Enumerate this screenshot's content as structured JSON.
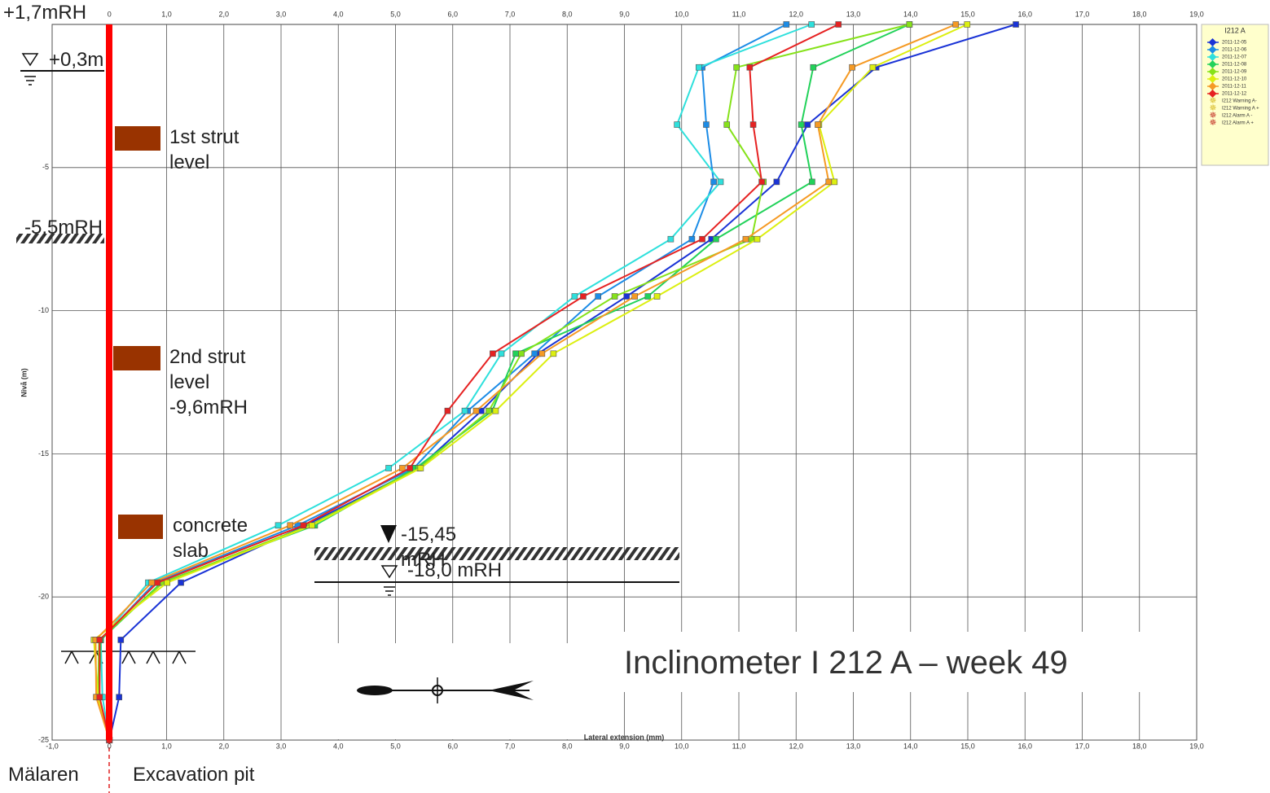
{
  "chart_data": {
    "type": "line",
    "xlabel": "Lateral extension (mm)",
    "ylabel": "Nivå (m)",
    "xlim": [
      -1,
      19
    ],
    "ylim": [
      -25,
      0
    ],
    "xticks": [
      {
        "value": -1,
        "label": "-1,0"
      },
      0,
      {
        "value": 1,
        "label": "1,0"
      },
      {
        "value": 2,
        "label": "2,0"
      },
      {
        "value": 3,
        "label": "3,0"
      },
      {
        "value": 4,
        "label": "4,0"
      },
      {
        "value": 5,
        "label": "5,0"
      },
      {
        "value": 6,
        "label": "6,0"
      },
      {
        "value": 7,
        "label": "7,0"
      },
      {
        "value": 8,
        "label": "8,0"
      },
      {
        "value": 9,
        "label": "9,0"
      },
      {
        "value": 10,
        "label": "10,0"
      },
      {
        "value": 11,
        "label": "11,0"
      },
      {
        "value": 12,
        "label": "12,0"
      },
      {
        "value": 13,
        "label": "13,0"
      },
      {
        "value": 14,
        "label": "14,0"
      },
      {
        "value": 15,
        "label": "15,0"
      },
      {
        "value": 16,
        "label": "16,0"
      },
      {
        "value": 17,
        "label": "17,0"
      },
      {
        "value": 18,
        "label": "18,0"
      },
      {
        "value": 19,
        "label": "19,0"
      }
    ],
    "yticks": [
      -5,
      -10,
      -15,
      -20,
      -25
    ],
    "grid": true,
    "legend_title": "I212 A",
    "legend_position": "right",
    "y": [
      0,
      -1.5,
      -3.5,
      -5.5,
      -7.5,
      -9.5,
      -11.5,
      -13.5,
      -15.5,
      -17.5,
      -19.5,
      -21.5,
      -23.5,
      -25
    ],
    "series": [
      {
        "name": "2011-12-05",
        "color": "#1a33d6",
        "x": [
          15.84,
          13.4,
          12.2,
          11.66,
          10.52,
          9.04,
          7.49,
          6.5,
          5.4,
          3.43,
          1.25,
          0.2,
          0.17,
          0
        ]
      },
      {
        "name": "2011-12-06",
        "color": "#1c8ce6",
        "x": [
          11.83,
          10.36,
          10.43,
          10.56,
          10.18,
          8.54,
          7.43,
          6.26,
          5.32,
          3.29,
          0.8,
          -0.15,
          -0.18,
          0
        ]
      },
      {
        "name": "2011-12-07",
        "color": "#2ee0dc",
        "x": [
          12.27,
          10.3,
          9.92,
          10.68,
          9.81,
          8.13,
          6.85,
          6.21,
          4.88,
          2.95,
          0.68,
          -0.15,
          -0.12,
          0
        ]
      },
      {
        "name": "2011-12-08",
        "color": "#22d25a",
        "x": [
          13.98,
          12.3,
          12.09,
          12.28,
          10.6,
          9.41,
          7.1,
          6.69,
          5.35,
          3.59,
          0.91,
          -0.15,
          -0.18,
          0
        ]
      },
      {
        "name": "2011-12-09",
        "color": "#86e21a",
        "x": [
          13.98,
          10.96,
          10.79,
          11.43,
          11.22,
          8.83,
          7.2,
          6.63,
          5.41,
          3.5,
          0.94,
          -0.18,
          -0.2,
          0
        ]
      },
      {
        "name": "2011-12-10",
        "color": "#dcef10",
        "x": [
          14.99,
          13.34,
          12.4,
          12.67,
          11.32,
          9.57,
          7.76,
          6.75,
          5.44,
          3.54,
          1.01,
          -0.27,
          -0.2,
          0
        ]
      },
      {
        "name": "2011-12-11",
        "color": "#f59a24",
        "x": [
          14.79,
          12.98,
          12.38,
          12.57,
          11.12,
          9.18,
          7.56,
          6.41,
          5.12,
          3.16,
          0.74,
          -0.24,
          -0.23,
          0
        ]
      },
      {
        "name": "2011-12-12",
        "color": "#e62222",
        "x": [
          12.74,
          11.19,
          11.25,
          11.4,
          10.36,
          8.28,
          6.7,
          5.91,
          5.25,
          3.39,
          0.84,
          -0.17,
          -0.17,
          0
        ]
      }
    ],
    "legend_extra": [
      {
        "name": "I212 Warning A-",
        "color": "#d6b820"
      },
      {
        "name": "I212 Warning A +",
        "color": "#d6b820"
      },
      {
        "name": "I212 Alarm A -",
        "color": "#c0281e"
      },
      {
        "name": "I212 Alarm A +",
        "color": "#c0281e"
      }
    ],
    "annotations": {
      "top_level": "+1,7mRH",
      "water_level": "+0,3m",
      "strut1": "1st strut level",
      "ground_level": "-5,5mRH",
      "strut2": "2nd strut level -9,6mRH",
      "slab": "concrete slab",
      "excavation_bottom": "-15,45 mRH",
      "water_bottom": "-18,0 mRH",
      "title": "Inclinometer I 212 A – week 49",
      "left_side": "Mälaren",
      "right_side": "Excavation pit"
    }
  }
}
